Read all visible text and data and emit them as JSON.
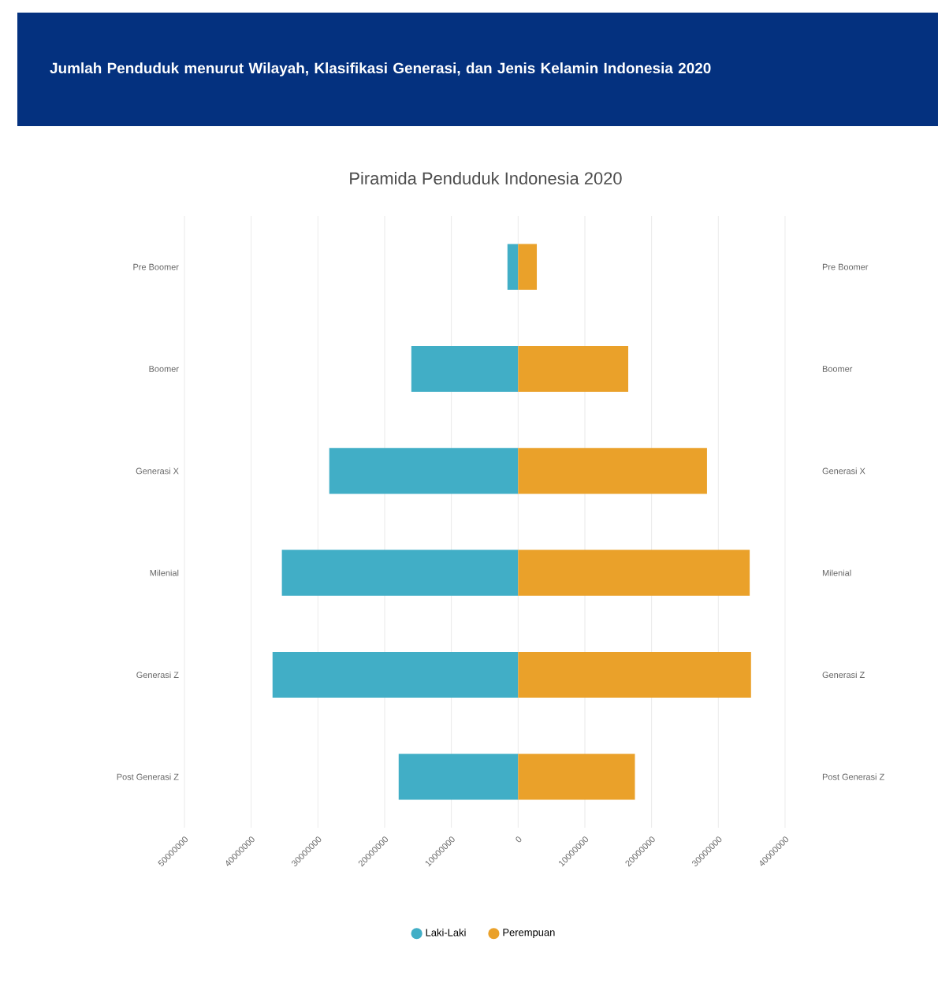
{
  "chart_data": {
    "type": "bar",
    "orientation": "horizontal",
    "stacked": true,
    "title": "Jumlah Penduduk menurut Wilayah, Klasifikasi Generasi, dan Jenis Kelamin Indonesia 2020",
    "subtitle": "Piramida Penduduk Indonesia 2020",
    "categories": [
      "Pre Boomer",
      "Boomer",
      "Generasi X",
      "Milenial",
      "Generasi Z",
      "Post Generasi Z"
    ],
    "series": [
      {
        "name": "Laki-Laki",
        "color": "#41aec6",
        "values": [
          -1600000,
          -16000000,
          -28300000,
          -35400000,
          -36800000,
          -17900000
        ]
      },
      {
        "name": "Perempuan",
        "color": "#eaa12a",
        "values": [
          2800000,
          16500000,
          28300000,
          34700000,
          34900000,
          17500000
        ]
      }
    ],
    "xlim": [
      -50000000,
      40000000
    ],
    "xticks": [
      {
        "value": -50000000,
        "label": "50000000"
      },
      {
        "value": -40000000,
        "label": "40000000"
      },
      {
        "value": -30000000,
        "label": "30000000"
      },
      {
        "value": -20000000,
        "label": "20000000"
      },
      {
        "value": -10000000,
        "label": "10000000"
      },
      0,
      10000000,
      20000000,
      30000000,
      40000000
    ],
    "grid": "x",
    "legend": "bottom"
  }
}
